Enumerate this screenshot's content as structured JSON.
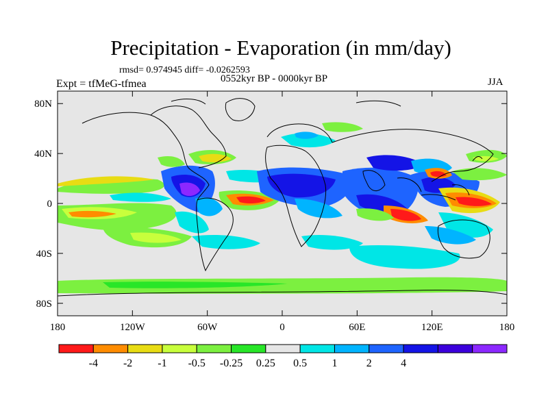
{
  "title": "Precipitation - Evaporation (in mm/day)",
  "stats": "rmsd= 0.974945 diff= -0.0262593",
  "period": "0552kyr BP - 0000kyr BP",
  "experiment": "Expt = tfMeG-tfmea",
  "season": "JJA",
  "axes": {
    "lat_labels": [
      "80N",
      "40N",
      "0",
      "40S",
      "80S"
    ],
    "lon_labels": [
      "180",
      "120W",
      "60W",
      "0",
      "60E",
      "120E",
      "180"
    ]
  },
  "colorbar": {
    "colors": [
      "#ff1a1a",
      "#ff8c00",
      "#e8dc14",
      "#c8ff3c",
      "#7cf040",
      "#28e628",
      "#e6e6e6",
      "#00e6e6",
      "#00b4ff",
      "#1e64ff",
      "#1414e6",
      "#3c00dc",
      "#8c28ff"
    ],
    "labels": [
      "-4",
      "-2",
      "-1",
      "-0.5",
      "-0.25",
      "0.25",
      "0.5",
      "1",
      "2",
      "4"
    ]
  }
}
